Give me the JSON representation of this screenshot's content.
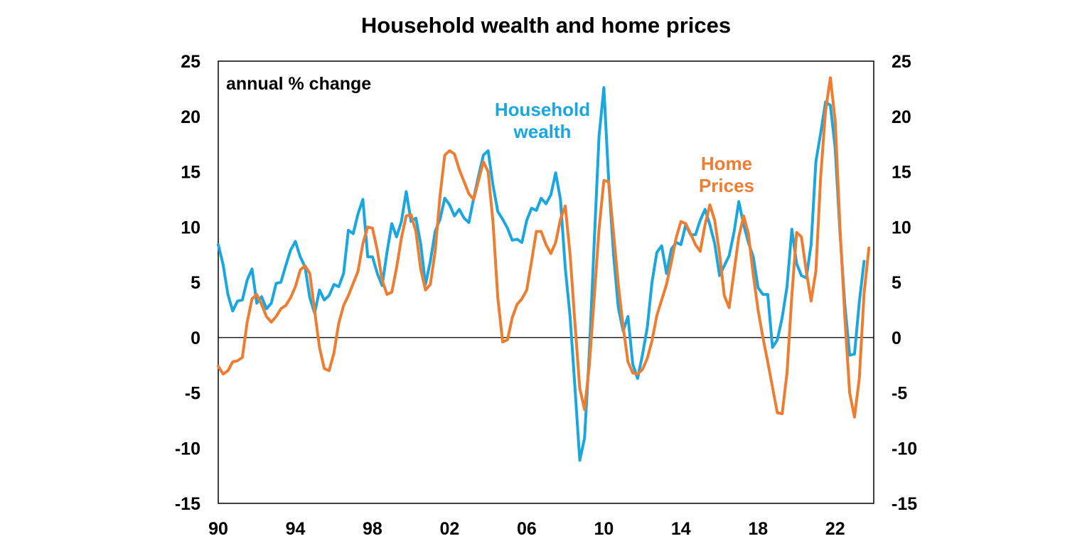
{
  "chart_data": {
    "type": "line",
    "title": "Household wealth and home prices",
    "annotation": "annual % change",
    "ylim": [
      -15,
      25
    ],
    "yticks": [
      -15,
      -10,
      -5,
      0,
      5,
      10,
      15,
      20,
      25
    ],
    "xlim": [
      1990,
      2024
    ],
    "xticks": [
      {
        "value": 1990,
        "label": "90"
      },
      {
        "value": 1994,
        "label": "94"
      },
      {
        "value": 1998,
        "label": "98"
      },
      {
        "value": 2002,
        "label": "02"
      },
      {
        "value": 2006,
        "label": "06"
      },
      {
        "value": 2010,
        "label": "10"
      },
      {
        "value": 2014,
        "label": "14"
      },
      {
        "value": 2018,
        "label": "18"
      },
      {
        "value": 2022,
        "label": "22"
      }
    ],
    "grid": false,
    "zero_line": true,
    "series": [
      {
        "name_lines": [
          "Household",
          "wealth"
        ],
        "color": "#1AA7E0",
        "points": [
          [
            1990.0,
            8.4
          ],
          [
            1990.25,
            6.6
          ],
          [
            1990.5,
            3.9
          ],
          [
            1990.75,
            2.4
          ],
          [
            1991.0,
            3.3
          ],
          [
            1991.25,
            3.4
          ],
          [
            1991.5,
            5.2
          ],
          [
            1991.75,
            6.2
          ],
          [
            1992.0,
            3.1
          ],
          [
            1992.25,
            3.7
          ],
          [
            1992.5,
            2.6
          ],
          [
            1992.75,
            3.1
          ],
          [
            1993.0,
            4.9
          ],
          [
            1993.25,
            5.0
          ],
          [
            1993.5,
            6.5
          ],
          [
            1993.75,
            7.9
          ],
          [
            1994.0,
            8.7
          ],
          [
            1994.25,
            7.3
          ],
          [
            1994.5,
            6.4
          ],
          [
            1994.75,
            3.6
          ],
          [
            1995.0,
            2.2
          ],
          [
            1995.25,
            4.3
          ],
          [
            1995.5,
            3.4
          ],
          [
            1995.75,
            3.8
          ],
          [
            1996.0,
            4.8
          ],
          [
            1996.25,
            4.6
          ],
          [
            1996.5,
            5.8
          ],
          [
            1996.75,
            9.7
          ],
          [
            1997.0,
            9.4
          ],
          [
            1997.25,
            11.2
          ],
          [
            1997.5,
            12.5
          ],
          [
            1997.75,
            7.3
          ],
          [
            1998.0,
            7.3
          ],
          [
            1998.25,
            5.8
          ],
          [
            1998.5,
            4.7
          ],
          [
            1998.75,
            7.7
          ],
          [
            1999.0,
            10.3
          ],
          [
            1999.25,
            9.1
          ],
          [
            1999.5,
            10.5
          ],
          [
            1999.75,
            13.2
          ],
          [
            2000.0,
            10.5
          ],
          [
            2000.25,
            10.8
          ],
          [
            2000.5,
            8.5
          ],
          [
            2000.75,
            4.8
          ],
          [
            2001.0,
            6.9
          ],
          [
            2001.25,
            9.6
          ],
          [
            2001.5,
            10.7
          ],
          [
            2001.75,
            12.6
          ],
          [
            2002.0,
            12.0
          ],
          [
            2002.25,
            11.0
          ],
          [
            2002.5,
            11.6
          ],
          [
            2002.75,
            10.8
          ],
          [
            2003.0,
            10.4
          ],
          [
            2003.25,
            12.6
          ],
          [
            2003.5,
            14.6
          ],
          [
            2003.75,
            16.5
          ],
          [
            2004.0,
            16.9
          ],
          [
            2004.25,
            13.8
          ],
          [
            2004.5,
            11.4
          ],
          [
            2004.75,
            10.7
          ],
          [
            2005.0,
            9.9
          ],
          [
            2005.25,
            8.8
          ],
          [
            2005.5,
            8.9
          ],
          [
            2005.75,
            8.6
          ],
          [
            2006.0,
            10.6
          ],
          [
            2006.25,
            11.7
          ],
          [
            2006.5,
            11.5
          ],
          [
            2006.75,
            12.6
          ],
          [
            2007.0,
            12.1
          ],
          [
            2007.25,
            12.9
          ],
          [
            2007.5,
            14.9
          ],
          [
            2007.75,
            12.5
          ],
          [
            2008.0,
            6.3
          ],
          [
            2008.25,
            1.9
          ],
          [
            2008.5,
            -4.5
          ],
          [
            2008.75,
            -11.1
          ],
          [
            2009.0,
            -9.1
          ],
          [
            2009.25,
            -1.3
          ],
          [
            2009.5,
            8.6
          ],
          [
            2009.75,
            18.2
          ],
          [
            2010.0,
            22.6
          ],
          [
            2010.25,
            14.3
          ],
          [
            2010.5,
            7.6
          ],
          [
            2010.75,
            2.7
          ],
          [
            2011.0,
            0.6
          ],
          [
            2011.25,
            1.9
          ],
          [
            2011.5,
            -2.4
          ],
          [
            2011.75,
            -3.7
          ],
          [
            2012.0,
            -1.6
          ],
          [
            2012.25,
            0.9
          ],
          [
            2012.5,
            5.0
          ],
          [
            2012.75,
            7.7
          ],
          [
            2013.0,
            8.3
          ],
          [
            2013.25,
            5.8
          ],
          [
            2013.5,
            8.0
          ],
          [
            2013.75,
            8.6
          ],
          [
            2014.0,
            8.4
          ],
          [
            2014.25,
            10.2
          ],
          [
            2014.5,
            9.3
          ],
          [
            2014.75,
            9.3
          ],
          [
            2015.0,
            10.6
          ],
          [
            2015.25,
            11.6
          ],
          [
            2015.5,
            10.2
          ],
          [
            2015.75,
            8.5
          ],
          [
            2016.0,
            5.6
          ],
          [
            2016.25,
            6.5
          ],
          [
            2016.5,
            7.4
          ],
          [
            2016.75,
            9.5
          ],
          [
            2017.0,
            12.3
          ],
          [
            2017.25,
            10.2
          ],
          [
            2017.5,
            8.6
          ],
          [
            2017.75,
            7.3
          ],
          [
            2018.0,
            4.5
          ],
          [
            2018.25,
            3.9
          ],
          [
            2018.5,
            3.9
          ],
          [
            2018.75,
            -0.9
          ],
          [
            2019.0,
            -0.2
          ],
          [
            2019.25,
            1.8
          ],
          [
            2019.5,
            4.6
          ],
          [
            2019.75,
            9.8
          ],
          [
            2020.0,
            6.7
          ],
          [
            2020.25,
            5.6
          ],
          [
            2020.5,
            5.4
          ],
          [
            2020.75,
            8.4
          ],
          [
            2021.0,
            15.9
          ],
          [
            2021.25,
            18.5
          ],
          [
            2021.5,
            21.3
          ],
          [
            2021.75,
            21.0
          ],
          [
            2022.0,
            17.1
          ],
          [
            2022.25,
            9.5
          ],
          [
            2022.5,
            3.0
          ],
          [
            2022.75,
            -1.6
          ],
          [
            2023.0,
            -1.5
          ],
          [
            2023.25,
            3.2
          ],
          [
            2023.5,
            6.9
          ]
        ]
      },
      {
        "name_lines": [
          "Home",
          "Prices"
        ],
        "color": "#ED7D31",
        "points": [
          [
            1990.0,
            -2.6
          ],
          [
            1990.25,
            -3.3
          ],
          [
            1990.5,
            -3.0
          ],
          [
            1990.75,
            -2.2
          ],
          [
            1991.0,
            -2.1
          ],
          [
            1991.25,
            -1.8
          ],
          [
            1991.5,
            1.4
          ],
          [
            1991.75,
            3.5
          ],
          [
            1992.0,
            3.9
          ],
          [
            1992.25,
            3.0
          ],
          [
            1992.5,
            1.9
          ],
          [
            1992.75,
            1.4
          ],
          [
            1993.0,
            1.9
          ],
          [
            1993.25,
            2.6
          ],
          [
            1993.5,
            2.9
          ],
          [
            1993.75,
            3.6
          ],
          [
            1994.0,
            4.6
          ],
          [
            1994.25,
            6.1
          ],
          [
            1994.5,
            6.5
          ],
          [
            1994.75,
            5.8
          ],
          [
            1995.0,
            2.4
          ],
          [
            1995.25,
            -0.9
          ],
          [
            1995.5,
            -2.8
          ],
          [
            1995.75,
            -3.0
          ],
          [
            1996.0,
            -1.4
          ],
          [
            1996.25,
            1.3
          ],
          [
            1996.5,
            2.9
          ],
          [
            1996.75,
            3.8
          ],
          [
            1997.0,
            4.9
          ],
          [
            1997.25,
            6.0
          ],
          [
            1997.5,
            8.5
          ],
          [
            1997.75,
            10.0
          ],
          [
            1998.0,
            9.9
          ],
          [
            1998.25,
            7.9
          ],
          [
            1998.5,
            5.2
          ],
          [
            1998.75,
            3.9
          ],
          [
            1999.0,
            4.1
          ],
          [
            1999.25,
            6.3
          ],
          [
            1999.5,
            9.0
          ],
          [
            1999.75,
            11.0
          ],
          [
            2000.0,
            11.1
          ],
          [
            2000.25,
            9.6
          ],
          [
            2000.5,
            6.2
          ],
          [
            2000.75,
            4.3
          ],
          [
            2001.0,
            4.8
          ],
          [
            2001.25,
            7.8
          ],
          [
            2001.5,
            12.8
          ],
          [
            2001.75,
            16.5
          ],
          [
            2002.0,
            16.9
          ],
          [
            2002.25,
            16.6
          ],
          [
            2002.5,
            15.2
          ],
          [
            2002.75,
            14.1
          ],
          [
            2003.0,
            13.0
          ],
          [
            2003.25,
            12.5
          ],
          [
            2003.5,
            14.2
          ],
          [
            2003.75,
            15.9
          ],
          [
            2004.0,
            15.0
          ],
          [
            2004.25,
            10.5
          ],
          [
            2004.5,
            3.6
          ],
          [
            2004.75,
            -0.4
          ],
          [
            2005.0,
            -0.2
          ],
          [
            2005.25,
            1.8
          ],
          [
            2005.5,
            3.0
          ],
          [
            2005.75,
            3.5
          ],
          [
            2006.0,
            4.3
          ],
          [
            2006.25,
            6.9
          ],
          [
            2006.5,
            9.6
          ],
          [
            2006.75,
            9.6
          ],
          [
            2007.0,
            8.4
          ],
          [
            2007.25,
            7.6
          ],
          [
            2007.5,
            8.6
          ],
          [
            2007.75,
            10.7
          ],
          [
            2008.0,
            11.9
          ],
          [
            2008.25,
            7.5
          ],
          [
            2008.5,
            1.3
          ],
          [
            2008.75,
            -4.6
          ],
          [
            2009.0,
            -6.5
          ],
          [
            2009.25,
            -2.5
          ],
          [
            2009.5,
            3.6
          ],
          [
            2009.75,
            9.8
          ],
          [
            2010.0,
            14.2
          ],
          [
            2010.25,
            14.1
          ],
          [
            2010.5,
            9.5
          ],
          [
            2010.75,
            4.8
          ],
          [
            2011.0,
            1.0
          ],
          [
            2011.25,
            -2.2
          ],
          [
            2011.5,
            -3.2
          ],
          [
            2011.75,
            -3.3
          ],
          [
            2012.0,
            -2.9
          ],
          [
            2012.25,
            -1.9
          ],
          [
            2012.5,
            -0.3
          ],
          [
            2012.75,
            2.0
          ],
          [
            2013.0,
            3.4
          ],
          [
            2013.25,
            4.8
          ],
          [
            2013.5,
            6.8
          ],
          [
            2013.75,
            9.0
          ],
          [
            2014.0,
            10.5
          ],
          [
            2014.25,
            10.3
          ],
          [
            2014.5,
            9.4
          ],
          [
            2014.75,
            8.4
          ],
          [
            2015.0,
            7.8
          ],
          [
            2015.25,
            10.2
          ],
          [
            2015.5,
            12.0
          ],
          [
            2015.75,
            10.6
          ],
          [
            2016.0,
            7.6
          ],
          [
            2016.25,
            3.8
          ],
          [
            2016.5,
            2.7
          ],
          [
            2016.75,
            5.9
          ],
          [
            2017.0,
            9.1
          ],
          [
            2017.25,
            11.0
          ],
          [
            2017.5,
            9.4
          ],
          [
            2017.75,
            5.7
          ],
          [
            2018.0,
            2.5
          ],
          [
            2018.25,
            0.0
          ],
          [
            2018.5,
            -2.2
          ],
          [
            2018.75,
            -4.5
          ],
          [
            2019.0,
            -6.8
          ],
          [
            2019.25,
            -6.9
          ],
          [
            2019.5,
            -3.2
          ],
          [
            2019.75,
            3.8
          ],
          [
            2020.0,
            9.5
          ],
          [
            2020.25,
            9.1
          ],
          [
            2020.5,
            6.0
          ],
          [
            2020.75,
            3.3
          ],
          [
            2021.0,
            6.0
          ],
          [
            2021.25,
            14.6
          ],
          [
            2021.5,
            20.5
          ],
          [
            2021.75,
            23.5
          ],
          [
            2022.0,
            19.6
          ],
          [
            2022.25,
            10.0
          ],
          [
            2022.5,
            1.9
          ],
          [
            2022.75,
            -5.0
          ],
          [
            2023.0,
            -7.2
          ],
          [
            2023.25,
            -3.7
          ],
          [
            2023.5,
            4.0
          ],
          [
            2023.75,
            8.1
          ]
        ]
      }
    ]
  }
}
